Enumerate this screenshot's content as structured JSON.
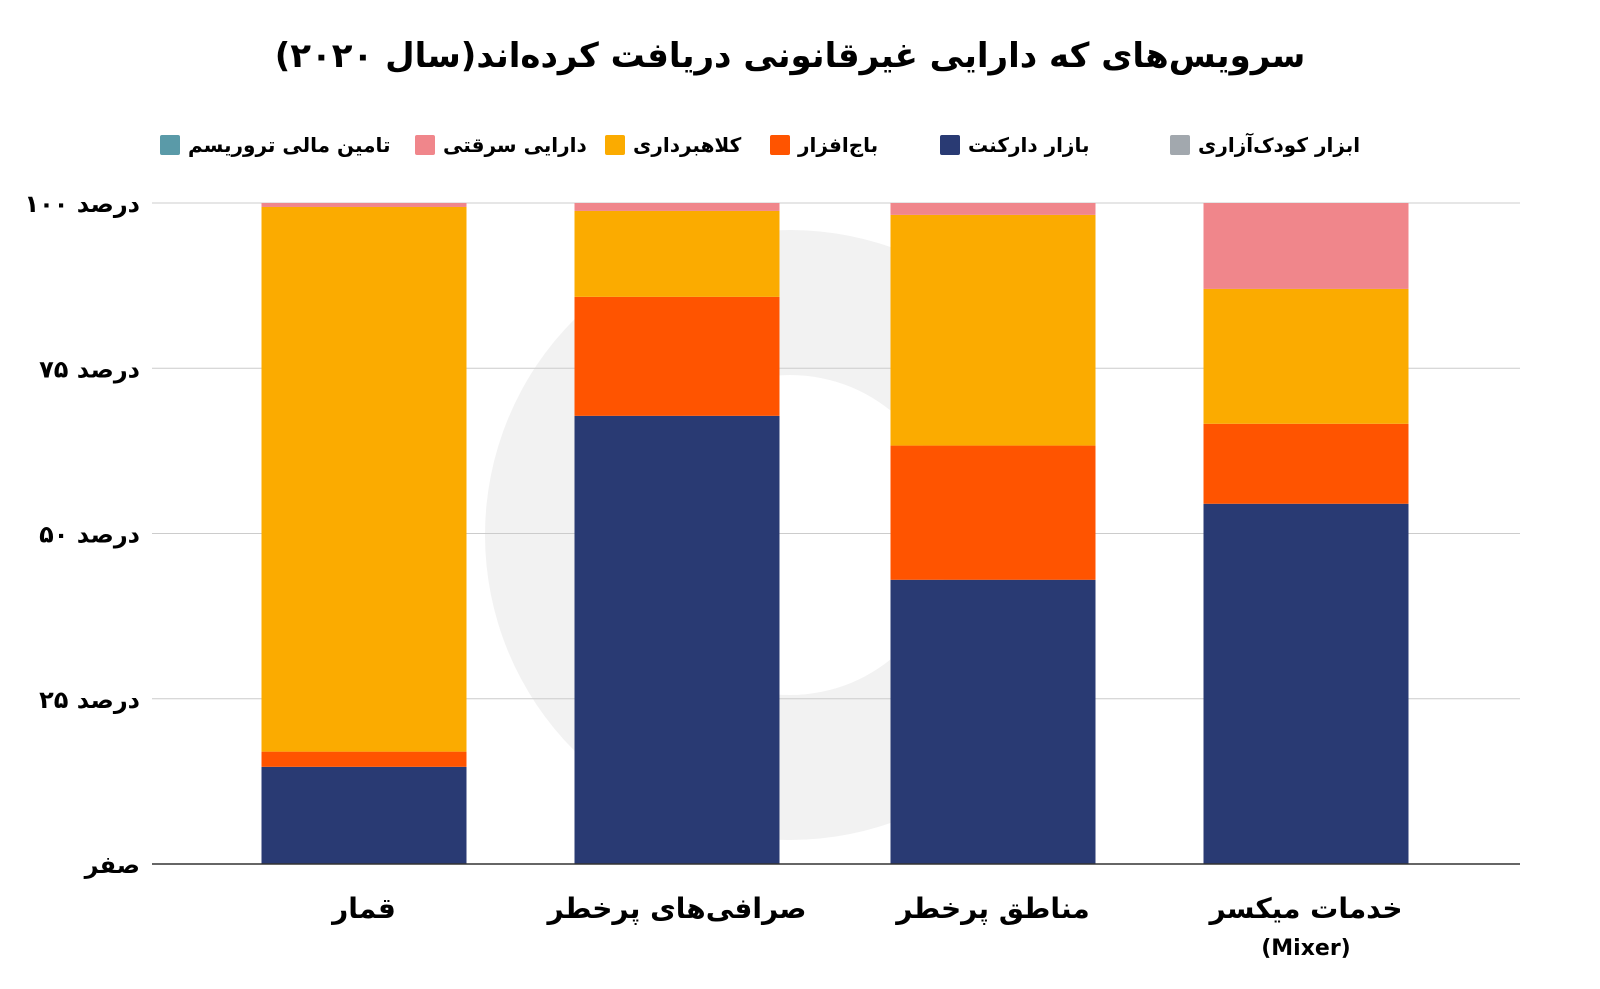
{
  "title": "سرویس‌های که دارایی غیرقانونی دریافت کرده‌اند(سال ۲۰۲۰)",
  "chart_data": {
    "type": "bar",
    "stacked": true,
    "title": "سرویس‌های که دارایی غیرقانونی دریافت کرده‌اند(سال ۲۰۲۰)",
    "categories": [
      "قمار",
      "صرافی‌های پرخطر",
      "مناطق پرخطر",
      "خدمات میکسر"
    ],
    "category_sublabels": [
      "",
      "",
      "",
      "(Mixer)"
    ],
    "ylim": [
      0,
      100
    ],
    "yticks": [
      0,
      25,
      50,
      75,
      100
    ],
    "ytick_labels": [
      "صفر",
      "درصد ۲۵",
      "درصد ۵۰",
      "درصد ۷۵",
      "درصد ۱۰۰"
    ],
    "grid": true,
    "legend_position": "top",
    "series": [
      {
        "name": "بازار دارکنت",
        "color": "#293a73",
        "values": [
          14.7,
          67.8,
          43.0,
          54.5
        ]
      },
      {
        "name": "باج‌افزار",
        "color": "#ff5400",
        "values": [
          2.3,
          18.0,
          20.3,
          12.1
        ]
      },
      {
        "name": "کلاهبرداری",
        "color": "#fbab00",
        "values": [
          82.4,
          13.0,
          34.9,
          20.4
        ]
      },
      {
        "name": "دارایی سرقتی",
        "color": "#f0868b",
        "values": [
          0.6,
          1.2,
          1.8,
          13.0
        ]
      },
      {
        "name": "تامین مالی تروریسم",
        "color": "#5a9aa8",
        "values": [
          0,
          0,
          0,
          0
        ]
      },
      {
        "name": "ابزار کودک‌آزاری",
        "color": "#a2a8ae",
        "values": [
          0,
          0,
          0,
          0
        ]
      }
    ],
    "legend_order": [
      "ابزار کودک‌آزاری",
      "بازار دارکنت",
      "باج‌افزار",
      "کلاهبرداری",
      "دارایی سرقتی",
      "تامین مالی تروریسم"
    ]
  }
}
